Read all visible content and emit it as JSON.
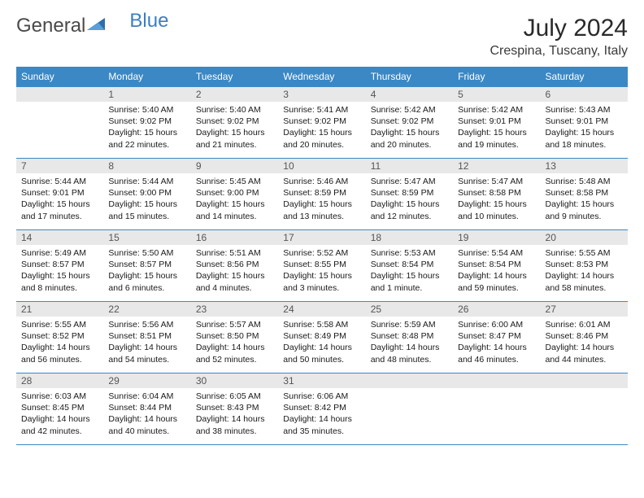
{
  "logo": {
    "text1": "General",
    "text2": "Blue"
  },
  "title": "July 2024",
  "location": "Crespina, Tuscany, Italy",
  "colors": {
    "header_bg": "#3b88c4",
    "header_text": "#ffffff",
    "daynum_bg": "#e8e8e8",
    "rule": "#3b88c4",
    "logo_gray": "#4a4a4a",
    "logo_blue": "#3b7fc4",
    "body_text": "#1a1a1a"
  },
  "font": {
    "title_size": 30,
    "location_size": 16,
    "header_size": 12,
    "body_size": 10.5
  },
  "day_names": [
    "Sunday",
    "Monday",
    "Tuesday",
    "Wednesday",
    "Thursday",
    "Friday",
    "Saturday"
  ],
  "weeks": [
    [
      {
        "blank": true
      },
      {
        "n": "1",
        "sr": "5:40 AM",
        "ss": "9:02 PM",
        "dl": "15 hours and 22 minutes."
      },
      {
        "n": "2",
        "sr": "5:40 AM",
        "ss": "9:02 PM",
        "dl": "15 hours and 21 minutes."
      },
      {
        "n": "3",
        "sr": "5:41 AM",
        "ss": "9:02 PM",
        "dl": "15 hours and 20 minutes."
      },
      {
        "n": "4",
        "sr": "5:42 AM",
        "ss": "9:02 PM",
        "dl": "15 hours and 20 minutes."
      },
      {
        "n": "5",
        "sr": "5:42 AM",
        "ss": "9:01 PM",
        "dl": "15 hours and 19 minutes."
      },
      {
        "n": "6",
        "sr": "5:43 AM",
        "ss": "9:01 PM",
        "dl": "15 hours and 18 minutes."
      }
    ],
    [
      {
        "n": "7",
        "sr": "5:44 AM",
        "ss": "9:01 PM",
        "dl": "15 hours and 17 minutes."
      },
      {
        "n": "8",
        "sr": "5:44 AM",
        "ss": "9:00 PM",
        "dl": "15 hours and 15 minutes."
      },
      {
        "n": "9",
        "sr": "5:45 AM",
        "ss": "9:00 PM",
        "dl": "15 hours and 14 minutes."
      },
      {
        "n": "10",
        "sr": "5:46 AM",
        "ss": "8:59 PM",
        "dl": "15 hours and 13 minutes."
      },
      {
        "n": "11",
        "sr": "5:47 AM",
        "ss": "8:59 PM",
        "dl": "15 hours and 12 minutes."
      },
      {
        "n": "12",
        "sr": "5:47 AM",
        "ss": "8:58 PM",
        "dl": "15 hours and 10 minutes."
      },
      {
        "n": "13",
        "sr": "5:48 AM",
        "ss": "8:58 PM",
        "dl": "15 hours and 9 minutes."
      }
    ],
    [
      {
        "n": "14",
        "sr": "5:49 AM",
        "ss": "8:57 PM",
        "dl": "15 hours and 8 minutes."
      },
      {
        "n": "15",
        "sr": "5:50 AM",
        "ss": "8:57 PM",
        "dl": "15 hours and 6 minutes."
      },
      {
        "n": "16",
        "sr": "5:51 AM",
        "ss": "8:56 PM",
        "dl": "15 hours and 4 minutes."
      },
      {
        "n": "17",
        "sr": "5:52 AM",
        "ss": "8:55 PM",
        "dl": "15 hours and 3 minutes."
      },
      {
        "n": "18",
        "sr": "5:53 AM",
        "ss": "8:54 PM",
        "dl": "15 hours and 1 minute."
      },
      {
        "n": "19",
        "sr": "5:54 AM",
        "ss": "8:54 PM",
        "dl": "14 hours and 59 minutes."
      },
      {
        "n": "20",
        "sr": "5:55 AM",
        "ss": "8:53 PM",
        "dl": "14 hours and 58 minutes."
      }
    ],
    [
      {
        "n": "21",
        "sr": "5:55 AM",
        "ss": "8:52 PM",
        "dl": "14 hours and 56 minutes."
      },
      {
        "n": "22",
        "sr": "5:56 AM",
        "ss": "8:51 PM",
        "dl": "14 hours and 54 minutes."
      },
      {
        "n": "23",
        "sr": "5:57 AM",
        "ss": "8:50 PM",
        "dl": "14 hours and 52 minutes."
      },
      {
        "n": "24",
        "sr": "5:58 AM",
        "ss": "8:49 PM",
        "dl": "14 hours and 50 minutes."
      },
      {
        "n": "25",
        "sr": "5:59 AM",
        "ss": "8:48 PM",
        "dl": "14 hours and 48 minutes."
      },
      {
        "n": "26",
        "sr": "6:00 AM",
        "ss": "8:47 PM",
        "dl": "14 hours and 46 minutes."
      },
      {
        "n": "27",
        "sr": "6:01 AM",
        "ss": "8:46 PM",
        "dl": "14 hours and 44 minutes."
      }
    ],
    [
      {
        "n": "28",
        "sr": "6:03 AM",
        "ss": "8:45 PM",
        "dl": "14 hours and 42 minutes."
      },
      {
        "n": "29",
        "sr": "6:04 AM",
        "ss": "8:44 PM",
        "dl": "14 hours and 40 minutes."
      },
      {
        "n": "30",
        "sr": "6:05 AM",
        "ss": "8:43 PM",
        "dl": "14 hours and 38 minutes."
      },
      {
        "n": "31",
        "sr": "6:06 AM",
        "ss": "8:42 PM",
        "dl": "14 hours and 35 minutes."
      },
      {
        "blank": true
      },
      {
        "blank": true
      },
      {
        "blank": true
      }
    ]
  ],
  "labels": {
    "sunrise": "Sunrise: ",
    "sunset": "Sunset: ",
    "daylight": "Daylight: "
  }
}
